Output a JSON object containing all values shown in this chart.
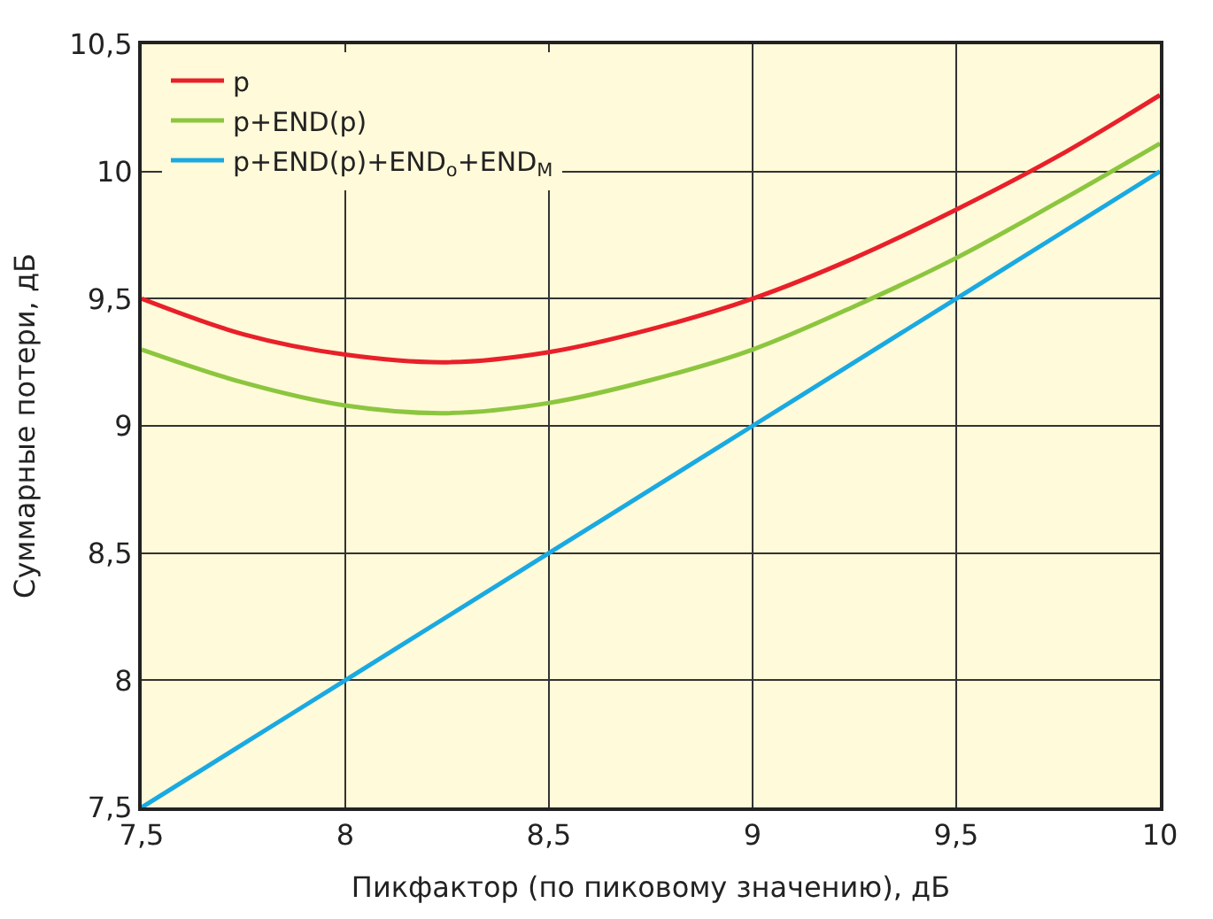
{
  "chart_data": {
    "type": "line",
    "xlabel": "Пикфактор (по пиковому значению), дБ",
    "ylabel": "Суммарные потери, дБ",
    "x": [
      7.5,
      7.75,
      8,
      8.25,
      8.5,
      8.75,
      9,
      9.25,
      9.5,
      9.75,
      10
    ],
    "series": [
      {
        "name": "p",
        "color": "#e8202a",
        "values": [
          9.5,
          9.36,
          9.28,
          9.25,
          9.29,
          9.38,
          9.5,
          9.66,
          9.85,
          10.06,
          10.3
        ]
      },
      {
        "name": "p+END(p)",
        "color": "#8cc63f",
        "values": [
          9.3,
          9.17,
          9.08,
          9.05,
          9.09,
          9.18,
          9.3,
          9.47,
          9.66,
          9.88,
          10.11
        ]
      },
      {
        "name": "p+END(p)+END$_{o}$+END$_{M}$",
        "color": "#1aa9e1",
        "values": [
          7.5,
          7.75,
          8,
          8.25,
          8.5,
          8.75,
          9,
          9.25,
          9.5,
          9.75,
          10
        ]
      }
    ],
    "xlim": [
      7.5,
      10
    ],
    "xticks": [
      {
        "value": 7.5,
        "label": "7,5"
      },
      {
        "value": 8,
        "label": "8"
      },
      {
        "value": 8.5,
        "label": "8,5"
      },
      {
        "value": 9,
        "label": "9"
      },
      {
        "value": 9.5,
        "label": "9,5"
      },
      {
        "value": 10,
        "label": "10"
      }
    ],
    "ylim": [
      7.5,
      10.5
    ],
    "yticks": [
      {
        "value": 7.5,
        "label": "7,5"
      },
      {
        "value": 8,
        "label": "8"
      },
      {
        "value": 8.5,
        "label": "8,5"
      },
      {
        "value": 9,
        "label": "9"
      },
      {
        "value": 9.5,
        "label": "9,5"
      },
      {
        "value": 10,
        "label": "10"
      },
      {
        "value": 10.5,
        "label": "10,5"
      }
    ],
    "grid": true,
    "legend": "top left",
    "marker": "none",
    "line_style": "solid"
  }
}
